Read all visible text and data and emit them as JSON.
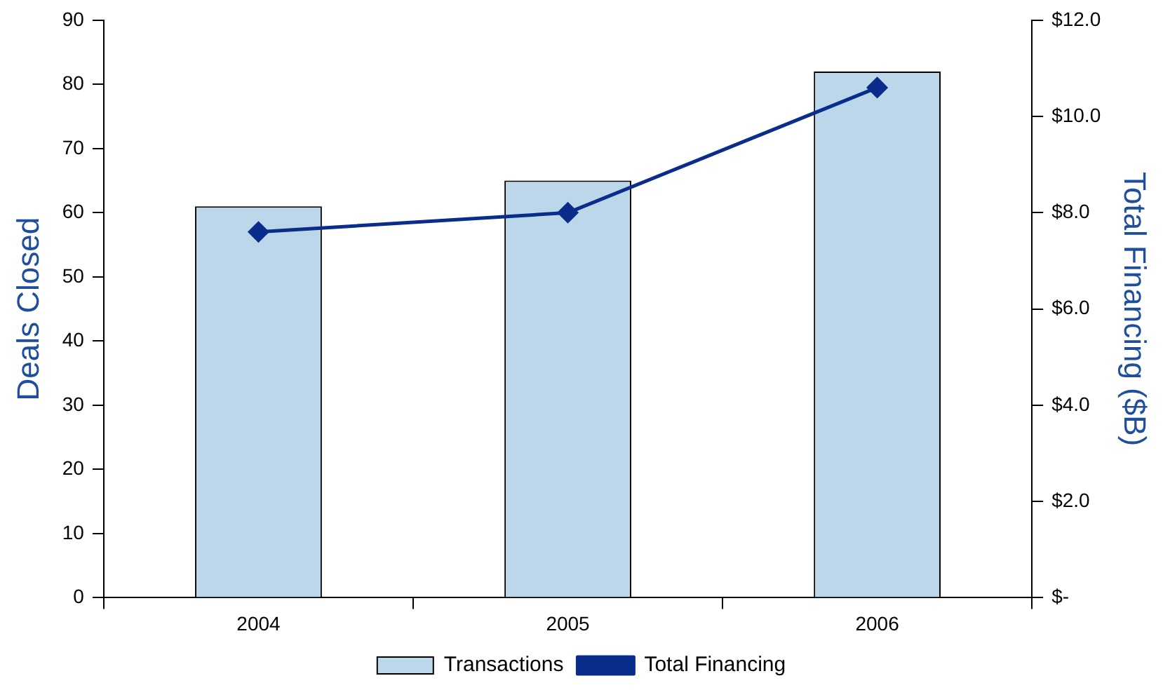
{
  "chart_data": {
    "type": "bar",
    "categories": [
      "2004",
      "2005",
      "2006"
    ],
    "series": [
      {
        "name": "Transactions",
        "color": "#bdd7ea",
        "values": [
          61,
          65,
          82
        ]
      },
      {
        "name": "Total Financing",
        "type": "line",
        "axis": "y2",
        "color": "#0a2d8c",
        "values": [
          7.6,
          8.0,
          10.6
        ],
        "marker": "diamond"
      }
    ],
    "ylabel": "Deals Closed",
    "y2label": "Total Financing ($B)",
    "ylim": [
      0,
      90
    ],
    "yticks": [
      0,
      10,
      20,
      30,
      40,
      50,
      60,
      70,
      80,
      90
    ],
    "y2lim": [
      0,
      12
    ],
    "y2ticks": [
      {
        "value": 0,
        "label": "$-"
      },
      {
        "value": 2,
        "label": "$2.0"
      },
      {
        "value": 4,
        "label": "$4.0"
      },
      {
        "value": 6,
        "label": "$6.0"
      },
      {
        "value": 8,
        "label": "$8.0"
      },
      {
        "value": 10,
        "label": "$10.0"
      },
      {
        "value": 12,
        "label": "$12.0"
      }
    ],
    "grid": false,
    "legend": "bottom"
  }
}
